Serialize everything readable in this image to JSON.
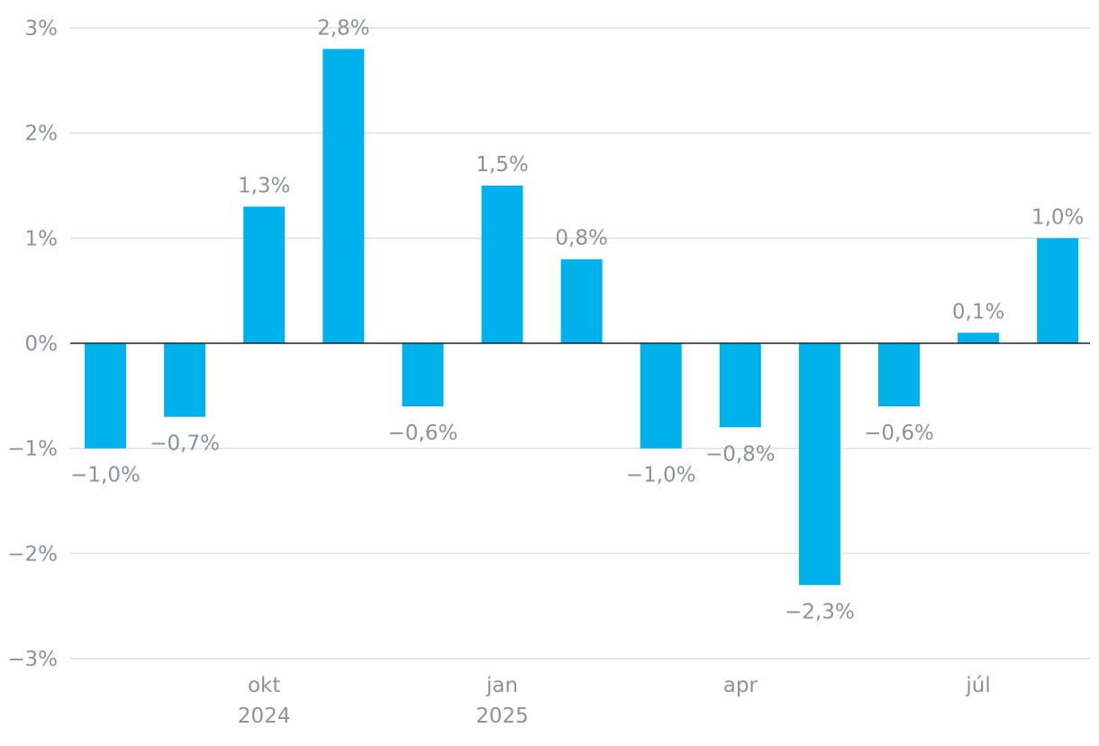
{
  "chart_data": {
    "type": "bar",
    "categories": [
      "2024-08",
      "2024-09",
      "2024-10",
      "2024-11",
      "2024-12",
      "2025-01",
      "2025-02",
      "2025-03",
      "2025-04",
      "2025-05",
      "2025-06",
      "2025-07",
      "2025-08"
    ],
    "values": [
      -1.0,
      -0.7,
      1.3,
      2.8,
      -0.6,
      1.5,
      0.8,
      -1.0,
      -0.8,
      -2.3,
      -0.6,
      0.1,
      1.0
    ],
    "value_labels": [
      "−1,0%",
      "−0,7%",
      "1,3%",
      "2,8%",
      "−0,6%",
      "1,5%",
      "0,8%",
      "−1,0%",
      "−0,8%",
      "−2,3%",
      "−0,6%",
      "0,1%",
      "1,0%"
    ],
    "ylim": [
      -3,
      3
    ],
    "yticks": [
      3,
      2,
      1,
      0,
      -1,
      -2,
      -3
    ],
    "ytick_labels": [
      "3%",
      "2%",
      "1%",
      "0%",
      "−1%",
      "−2%",
      "−3%"
    ],
    "xtick_labels": [
      {
        "category_index": 2,
        "lines": [
          "okt",
          "2024"
        ]
      },
      {
        "category_index": 5,
        "lines": [
          "jan",
          "2025"
        ]
      },
      {
        "category_index": 8,
        "lines": [
          "apr"
        ]
      },
      {
        "category_index": 11,
        "lines": [
          "júl"
        ]
      }
    ],
    "grid": true,
    "colors": {
      "bar": "#00b2ec",
      "grid": "#dcdfe3",
      "text": "#8a939c",
      "zero_line": "#222222"
    }
  }
}
